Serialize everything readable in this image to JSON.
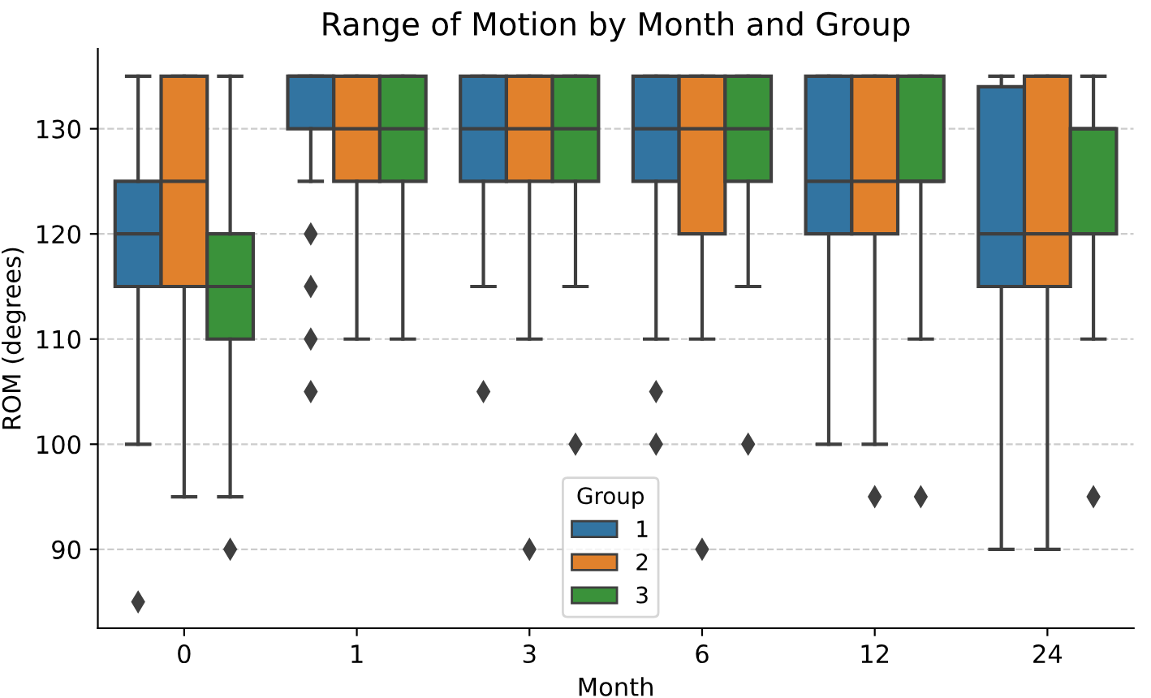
{
  "chart_data": {
    "type": "box",
    "title": "Range of Motion by Month and Group",
    "xlabel": "Month",
    "ylabel": "ROM (degrees)",
    "legend_title": "Group",
    "categories": [
      "0",
      "1",
      "3",
      "6",
      "12",
      "24"
    ],
    "series": [
      {
        "name": "1",
        "color": "#3274a1",
        "boxes": [
          {
            "low": 100,
            "q1": 115,
            "median": 120,
            "q3": 125,
            "high": 135,
            "outliers": [
              85
            ]
          },
          {
            "low": 125,
            "q1": 130,
            "median": 135,
            "q3": 135,
            "high": 135,
            "outliers": [
              120,
              115,
              110,
              105
            ]
          },
          {
            "low": 115,
            "q1": 125,
            "median": 130,
            "q3": 135,
            "high": 135,
            "outliers": [
              105
            ]
          },
          {
            "low": 110,
            "q1": 125,
            "median": 130,
            "q3": 135,
            "high": 135,
            "outliers": [
              105,
              100
            ]
          },
          {
            "low": 100,
            "q1": 120,
            "median": 125,
            "q3": 135,
            "high": 135
          },
          {
            "low": 90,
            "q1": 115,
            "median": 120,
            "q3": 134,
            "high": 135
          }
        ]
      },
      {
        "name": "2",
        "color": "#e1812c",
        "boxes": [
          {
            "low": 95,
            "q1": 115,
            "median": 125,
            "q3": 135,
            "high": 135
          },
          {
            "low": 110,
            "q1": 125,
            "median": 130,
            "q3": 135,
            "high": 135
          },
          {
            "low": 110,
            "q1": 125,
            "median": 130,
            "q3": 135,
            "high": 135,
            "outliers": [
              90
            ]
          },
          {
            "low": 110,
            "q1": 120,
            "median": 130,
            "q3": 135,
            "high": 135,
            "outliers": [
              90
            ]
          },
          {
            "low": 100,
            "q1": 120,
            "median": 125,
            "q3": 135,
            "high": 135,
            "outliers": [
              95
            ]
          },
          {
            "low": 90,
            "q1": 115,
            "median": 120,
            "q3": 135,
            "high": 135
          }
        ]
      },
      {
        "name": "3",
        "color": "#3a923a",
        "boxes": [
          {
            "low": 95,
            "q1": 110,
            "median": 115,
            "q3": 120,
            "high": 135,
            "outliers": [
              90
            ]
          },
          {
            "low": 110,
            "q1": 125,
            "median": 130,
            "q3": 135,
            "high": 135
          },
          {
            "low": 115,
            "q1": 125,
            "median": 130,
            "q3": 135,
            "high": 135,
            "outliers": [
              100
            ]
          },
          {
            "low": 115,
            "q1": 125,
            "median": 130,
            "q3": 135,
            "high": 135,
            "outliers": [
              100
            ]
          },
          {
            "low": 110,
            "q1": 125,
            "median": 125,
            "q3": 135,
            "high": 135,
            "outliers": [
              95
            ]
          },
          {
            "low": 110,
            "q1": 120,
            "median": 130,
            "q3": 130,
            "high": 135,
            "outliers": [
              95
            ]
          }
        ]
      }
    ],
    "ylim": [
      82.5,
      137.6
    ],
    "yticks": [
      90,
      100,
      110,
      120,
      130
    ],
    "grid": "y",
    "legend": "bottom"
  }
}
